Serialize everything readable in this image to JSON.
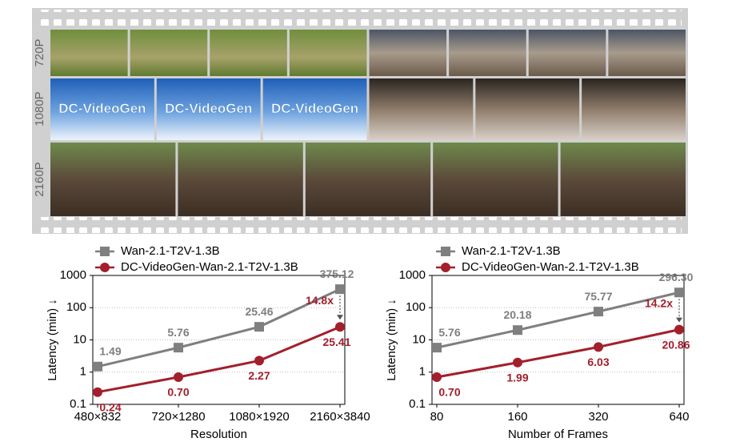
{
  "filmstrip": {
    "rows": [
      "720P",
      "1080P",
      "2160P"
    ],
    "image_text": "DC-VideoGen"
  },
  "chart_data": [
    {
      "type": "line",
      "y_label": "Latency (min) ↓",
      "x_label": "Resolution",
      "categories": [
        "480×832",
        "720×1280",
        "1080×1920",
        "2160×3840"
      ],
      "log_y": true,
      "grid": true,
      "ylim": [
        0.1,
        1000
      ],
      "yticks": [
        0.1,
        1,
        10,
        100,
        1000
      ],
      "series": [
        {
          "name": "Wan-2.1-T2V-1.3B",
          "color": "#7f7f7f",
          "marker": "square",
          "values": [
            1.49,
            5.76,
            25.46,
            375.12
          ],
          "value_labels": [
            "1.49",
            "5.76",
            "25.46",
            "375.12"
          ]
        },
        {
          "name": "DC-VideoGen-Wan-2.1-T2V-1.3B",
          "color": "#a31f2c",
          "marker": "circle",
          "values": [
            0.24,
            0.7,
            2.27,
            25.41
          ],
          "value_labels": [
            "0.24",
            "0.70",
            "2.27",
            "25.41"
          ]
        }
      ],
      "annotation": "14.8x"
    },
    {
      "type": "line",
      "y_label": "Latency (min) ↓",
      "x_label": "Number of Frames",
      "categories": [
        "80",
        "160",
        "320",
        "640"
      ],
      "log_y": true,
      "grid": true,
      "ylim": [
        0.1,
        1000
      ],
      "yticks": [
        0.1,
        1,
        10,
        100,
        1000
      ],
      "series": [
        {
          "name": "Wan-2.1-T2V-1.3B",
          "color": "#7f7f7f",
          "marker": "square",
          "values": [
            5.76,
            20.18,
            75.77,
            296.3
          ],
          "value_labels": [
            "5.76",
            "20.18",
            "75.77",
            "296.30"
          ]
        },
        {
          "name": "DC-VideoGen-Wan-2.1-T2V-1.3B",
          "color": "#a31f2c",
          "marker": "circle",
          "values": [
            0.7,
            1.99,
            6.03,
            20.86
          ],
          "value_labels": [
            "0.70",
            "1.99",
            "6.03",
            "20.86"
          ]
        }
      ],
      "annotation": "14.2x"
    }
  ]
}
